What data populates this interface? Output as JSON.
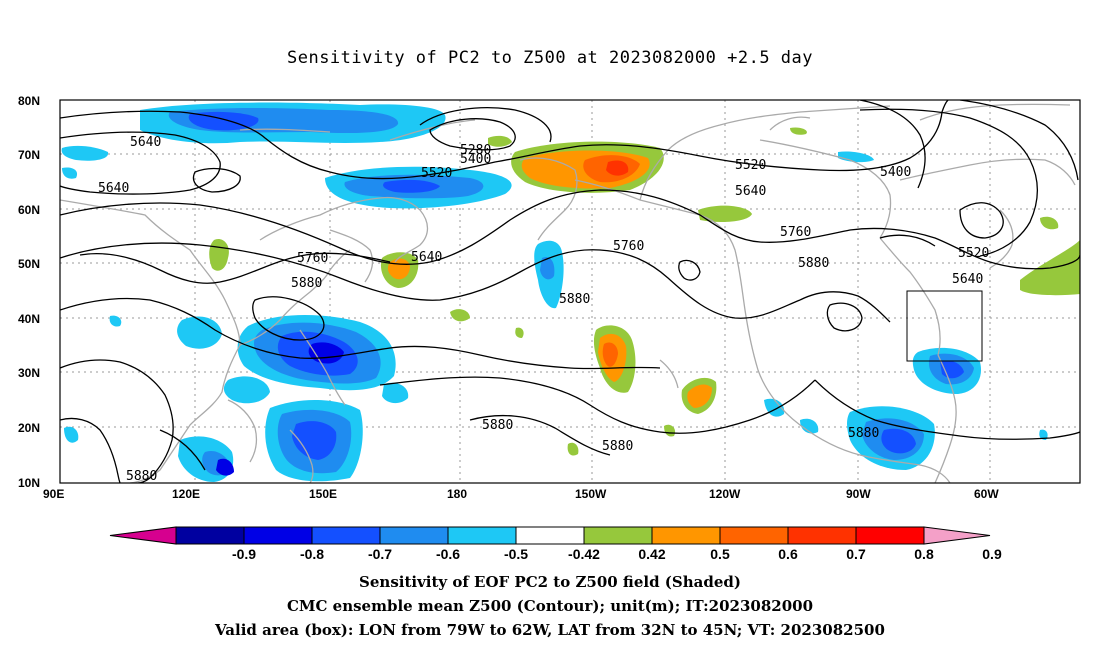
{
  "title": "Sensitivity of PC2 to Z500 at 2023082000 +2.5 day",
  "lat_labels": [
    "80N",
    "70N",
    "60N",
    "50N",
    "40N",
    "30N",
    "20N",
    "10N"
  ],
  "lon_labels": [
    "90E",
    "120E",
    "150E",
    "180",
    "150W",
    "120W",
    "90W",
    "60W"
  ],
  "contour_labels": [
    {
      "id": "c1",
      "text": "5640"
    },
    {
      "id": "c2",
      "text": "5640"
    },
    {
      "id": "c3",
      "text": "5280"
    },
    {
      "id": "c4",
      "text": "5400"
    },
    {
      "id": "c5",
      "text": "5520"
    },
    {
      "id": "c6",
      "text": "5520"
    },
    {
      "id": "c7",
      "text": "5640"
    },
    {
      "id": "c8",
      "text": "5400"
    },
    {
      "id": "c9",
      "text": "5520"
    },
    {
      "id": "c10",
      "text": "5640"
    },
    {
      "id": "c11",
      "text": "5760"
    },
    {
      "id": "c12",
      "text": "5760"
    },
    {
      "id": "c13",
      "text": "5760"
    },
    {
      "id": "c14",
      "text": "5880"
    },
    {
      "id": "c15",
      "text": "5640"
    },
    {
      "id": "c16",
      "text": "5880"
    },
    {
      "id": "c17",
      "text": "5880"
    },
    {
      "id": "c18",
      "text": "5880"
    },
    {
      "id": "c19",
      "text": "5880"
    },
    {
      "id": "c20",
      "text": "5880"
    },
    {
      "id": "c21",
      "text": "5880"
    }
  ],
  "colorbar": {
    "colors": [
      "#d6008f",
      "#0000a0",
      "#0000e6",
      "#1450ff",
      "#1f8cf0",
      "#1ec8f5",
      "#ffffff",
      "#96c83c",
      "#ff9600",
      "#ff6400",
      "#ff3200",
      "#ff0000",
      "#f4a0c8"
    ],
    "ticks": [
      "-0.9",
      "-0.8",
      "-0.7",
      "-0.6",
      "-0.5",
      "-0.42",
      "0.42",
      "0.5",
      "0.6",
      "0.7",
      "0.8",
      "0.9"
    ]
  },
  "valid_box": {
    "lon_from": "79W",
    "lon_to": "62W",
    "lat_from": "32N",
    "lat_to": "45N"
  },
  "captions": [
    "Sensitivity of EOF PC2 to Z500 field (Shaded)",
    "CMC ensemble mean Z500 (Contour); unit(m); IT:2023082000",
    "Valid area (box): LON from 79W to 62W, LAT from 32N to 45N; VT: 2023082500"
  ]
}
